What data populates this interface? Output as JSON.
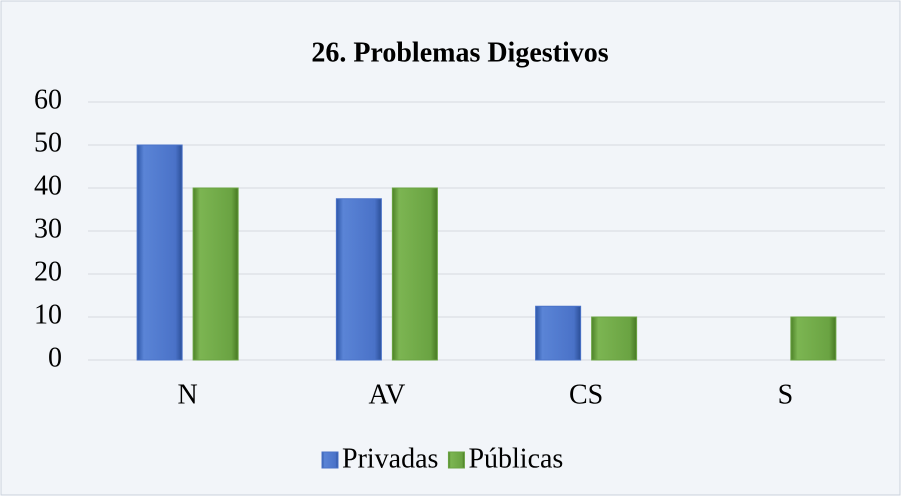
{
  "chart_data": {
    "type": "bar",
    "title": "26. Problemas Digestivos",
    "categories": [
      "N",
      "AV",
      "CS",
      "S"
    ],
    "series": [
      {
        "name": "Privadas",
        "color": "#4a72c8",
        "values": [
          50,
          37.5,
          12.5,
          0
        ]
      },
      {
        "name": "Públicas",
        "color": "#6aa342",
        "values": [
          40,
          40,
          10,
          10
        ]
      }
    ],
    "ylim": [
      0,
      60
    ],
    "yticks": [
      0,
      10,
      20,
      30,
      40,
      50,
      60
    ],
    "grid": true,
    "legend": "bottom"
  }
}
